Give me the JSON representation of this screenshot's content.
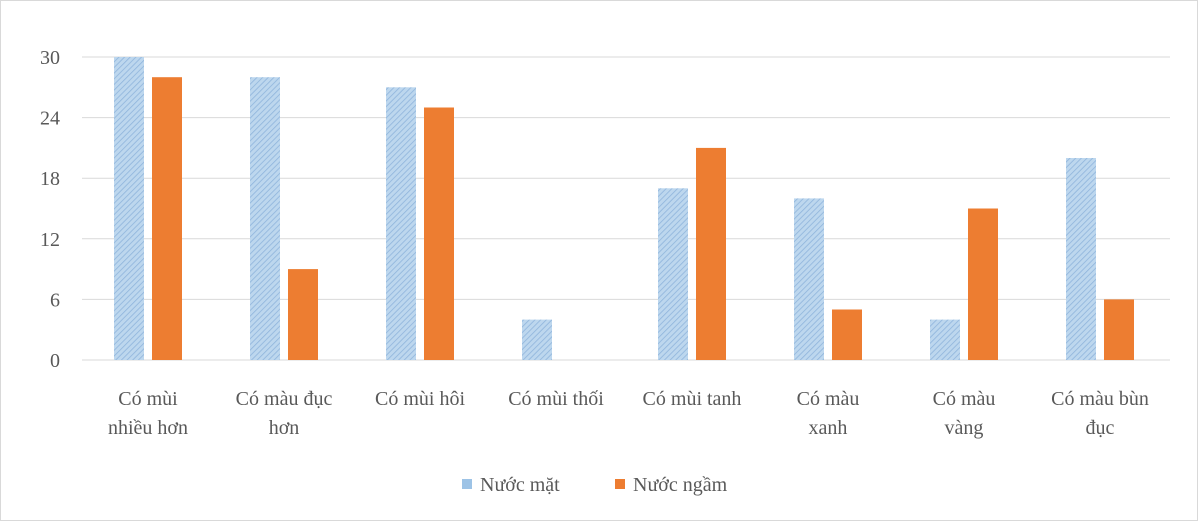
{
  "chart_data": {
    "type": "bar",
    "categories": [
      [
        "Có mùi",
        "nhiều hơn"
      ],
      [
        "Có màu đục",
        "hơn"
      ],
      [
        "Có mùi hôi"
      ],
      [
        "Có mùi thối"
      ],
      [
        "Có mùi tanh"
      ],
      [
        "Có màu",
        "xanh"
      ],
      [
        "Có màu",
        "vàng"
      ],
      [
        "Có màu bùn",
        "đục"
      ]
    ],
    "series": [
      {
        "name": "Nước mặt",
        "values": [
          30,
          28,
          27,
          4,
          17,
          16,
          4,
          20
        ],
        "color": "#9dc3e6"
      },
      {
        "name": "Nước ngầm",
        "values": [
          28,
          9,
          25,
          0,
          21,
          5,
          15,
          6
        ],
        "color": "#ed7d31"
      }
    ],
    "yticks": [
      "0",
      "6",
      "12",
      "18",
      "24",
      "30"
    ],
    "ylim": [
      0,
      30
    ],
    "grid": true,
    "legend": "bottom",
    "gridline_color": "#d9d9d9",
    "title": "",
    "xlabel": "",
    "ylabel": ""
  }
}
